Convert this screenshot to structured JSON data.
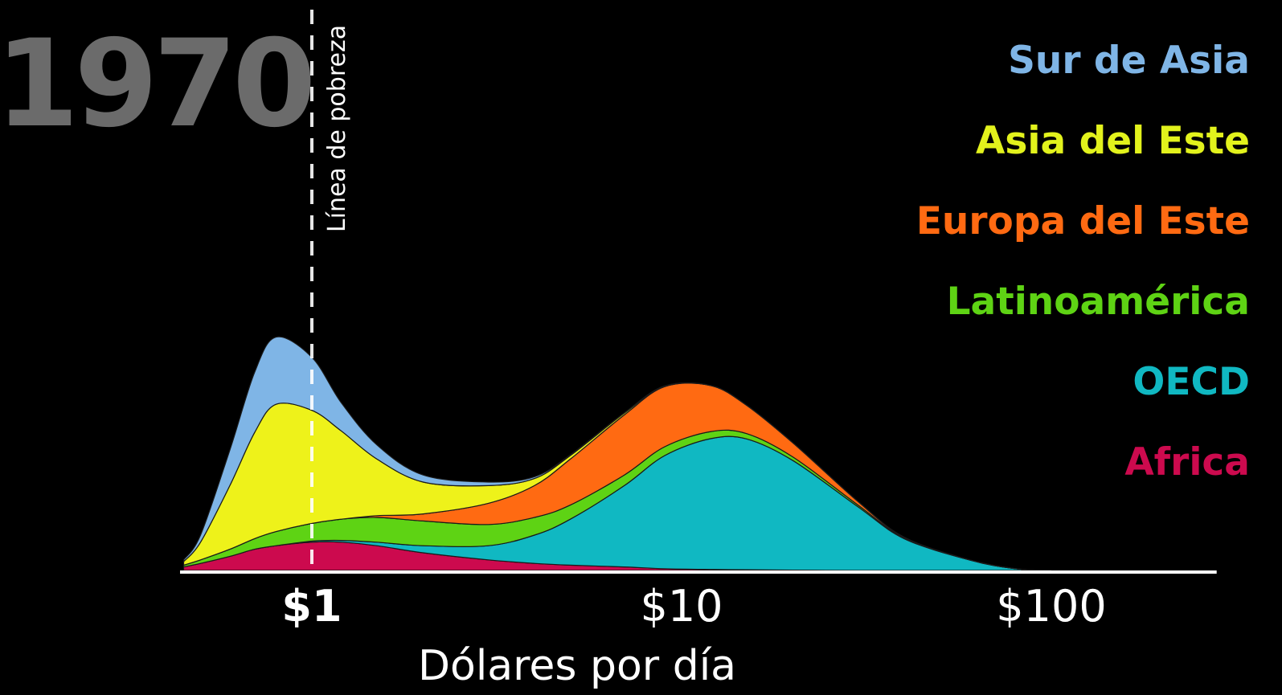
{
  "chart_data": {
    "type": "area",
    "stacked": true,
    "title": "1970",
    "xlabel": "Dólares por día",
    "ylabel": "",
    "xscale": "log",
    "xlim": [
      0.44,
      280
    ],
    "ylim": [
      0,
      1.0
    ],
    "x_ticks": [
      {
        "value": 1,
        "label": "$1",
        "bold": true
      },
      {
        "value": 10,
        "label": "$10",
        "bold": false
      },
      {
        "value": 100,
        "label": "$100",
        "bold": false
      }
    ],
    "poverty_line": {
      "x": 1,
      "label": "Línea de pobreza",
      "style": "dashed"
    },
    "x": [
      0.45,
      0.5,
      0.6,
      0.7,
      0.8,
      1.0,
      1.2,
      1.5,
      2,
      3,
      4,
      5,
      7,
      9,
      12,
      15,
      20,
      30,
      40,
      60,
      80,
      100
    ],
    "series": [
      {
        "name": "Africa",
        "color": "#cc0a4e",
        "values": [
          0.01,
          0.02,
          0.04,
          0.06,
          0.07,
          0.08,
          0.08,
          0.07,
          0.05,
          0.03,
          0.02,
          0.015,
          0.01,
          0.005,
          0.003,
          0.002,
          0.001,
          0,
          0,
          0,
          0,
          0
        ]
      },
      {
        "name": "OECD",
        "color": "#10b8c2",
        "values": [
          0,
          0,
          0,
          0,
          0,
          0.003,
          0.005,
          0.01,
          0.02,
          0.04,
          0.08,
          0.13,
          0.23,
          0.32,
          0.37,
          0.37,
          0.31,
          0.18,
          0.09,
          0.03,
          0.005,
          0
        ]
      },
      {
        "name": "Latinoamérica",
        "color": "#5ed314",
        "values": [
          0.005,
          0.01,
          0.02,
          0.03,
          0.04,
          0.05,
          0.06,
          0.07,
          0.07,
          0.06,
          0.05,
          0.04,
          0.03,
          0.025,
          0.02,
          0.015,
          0.01,
          0.005,
          0.002,
          0,
          0,
          0
        ]
      },
      {
        "name": "Europa del Este",
        "color": "#ff6a12",
        "values": [
          0,
          0,
          0,
          0,
          0,
          0,
          0,
          0.005,
          0.02,
          0.06,
          0.09,
          0.13,
          0.17,
          0.17,
          0.13,
          0.08,
          0.04,
          0.01,
          0.002,
          0,
          0,
          0
        ]
      },
      {
        "name": "Asia del Este",
        "color": "#eef21a",
        "values": [
          0.01,
          0.05,
          0.18,
          0.3,
          0.36,
          0.32,
          0.25,
          0.16,
          0.09,
          0.05,
          0.02,
          0.01,
          0.005,
          0.002,
          0,
          0,
          0,
          0,
          0,
          0,
          0,
          0
        ]
      },
      {
        "name": "Sur de Asia",
        "color": "#7fb5e6",
        "values": [
          0.005,
          0.02,
          0.1,
          0.17,
          0.19,
          0.15,
          0.08,
          0.04,
          0.02,
          0.01,
          0.005,
          0.002,
          0.001,
          0,
          0,
          0,
          0,
          0,
          0,
          0,
          0,
          0
        ]
      }
    ],
    "legend": [
      {
        "name": "Sur de Asia",
        "color": "#7fb5e6"
      },
      {
        "name": "Asia del Este",
        "color": "#e2f21c"
      },
      {
        "name": "Europa del Este",
        "color": "#ff6a12"
      },
      {
        "name": "Latinoamérica",
        "color": "#5ed314"
      },
      {
        "name": "OECD",
        "color": "#10b8c2"
      },
      {
        "name": "Africa",
        "color": "#cc0a4e"
      }
    ],
    "legend_placement": "right",
    "grid": false,
    "background": "#000000"
  }
}
